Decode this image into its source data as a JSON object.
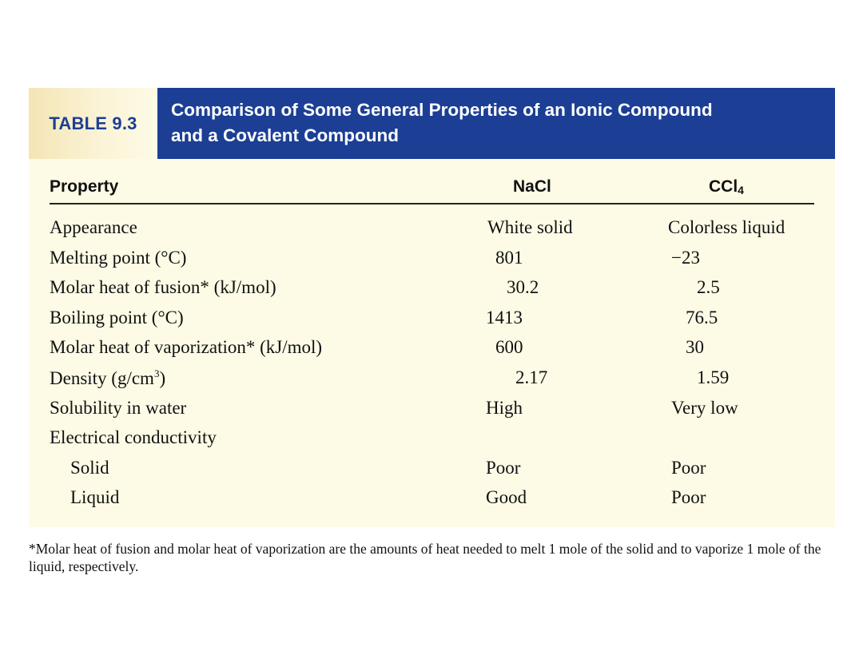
{
  "table": {
    "label": "TABLE 9.3",
    "title_line1": "Comparison of Some General Properties of an Ionic Compound",
    "title_line2": "and a Covalent Compound",
    "headers": {
      "property": "Property",
      "nacl": "NaCl",
      "ccl4_base": "CCl",
      "ccl4_sub": "4"
    },
    "rows": [
      {
        "property": "Appearance",
        "nacl": "White solid",
        "ccl4": "Colorless liquid"
      },
      {
        "property": "Melting point (°C)",
        "nacl": "801",
        "ccl4": "−23"
      },
      {
        "property": "Molar heat of fusion* (kJ/mol)",
        "nacl": "30.2",
        "ccl4": "2.5"
      },
      {
        "property": "Boiling point (°C)",
        "nacl": "1413",
        "ccl4": "76.5"
      },
      {
        "property": "Molar heat of vaporization* (kJ/mol)",
        "nacl": "600",
        "ccl4": "30"
      },
      {
        "property_base": "Density (g/cm",
        "property_sup": "3",
        "property_end": ")",
        "nacl": "2.17",
        "ccl4": "1.59"
      },
      {
        "property": "Solubility in water",
        "nacl": "High",
        "ccl4": "Very low"
      },
      {
        "property": "Electrical conductivity",
        "nacl": "",
        "ccl4": ""
      },
      {
        "property": "Solid",
        "nacl": "Poor",
        "ccl4": "Poor"
      },
      {
        "property": "Liquid",
        "nacl": "Good",
        "ccl4": "Poor"
      }
    ],
    "footnote": "*Molar heat of fusion and molar heat of vaporization are the amounts of heat needed to melt 1 mole of the solid and to vaporize 1 mole of the liquid, respectively."
  },
  "colors": {
    "title_band": "#1c3f95",
    "label_gold": "#f4e5b4",
    "panel_bg": "#fdfbe6"
  }
}
